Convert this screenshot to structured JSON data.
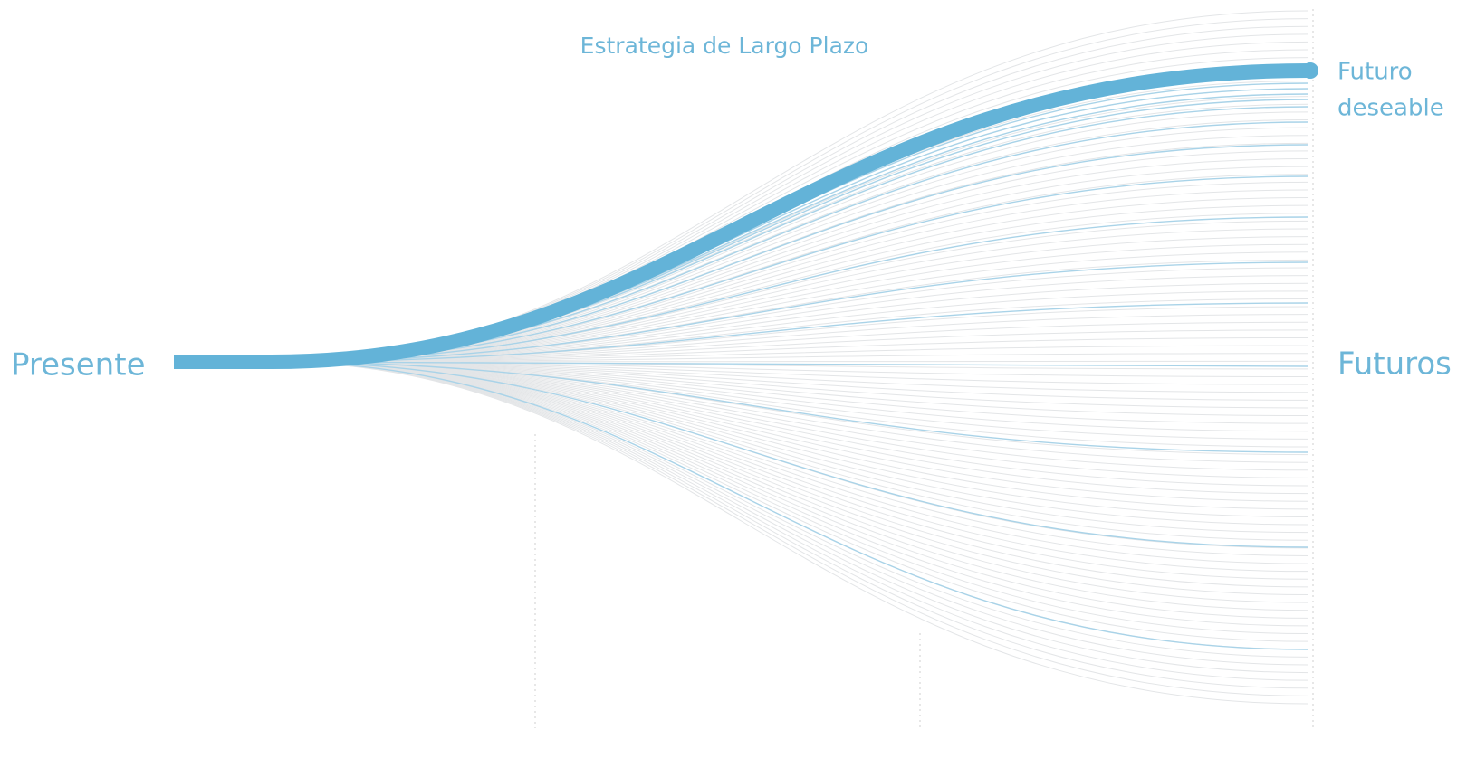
{
  "title": "Estrategia de Largo Plazo",
  "labels": {
    "start": "Presente",
    "goal_line1": "Futuro",
    "goal_line2": "deseable",
    "futures": "Futuros"
  }
}
